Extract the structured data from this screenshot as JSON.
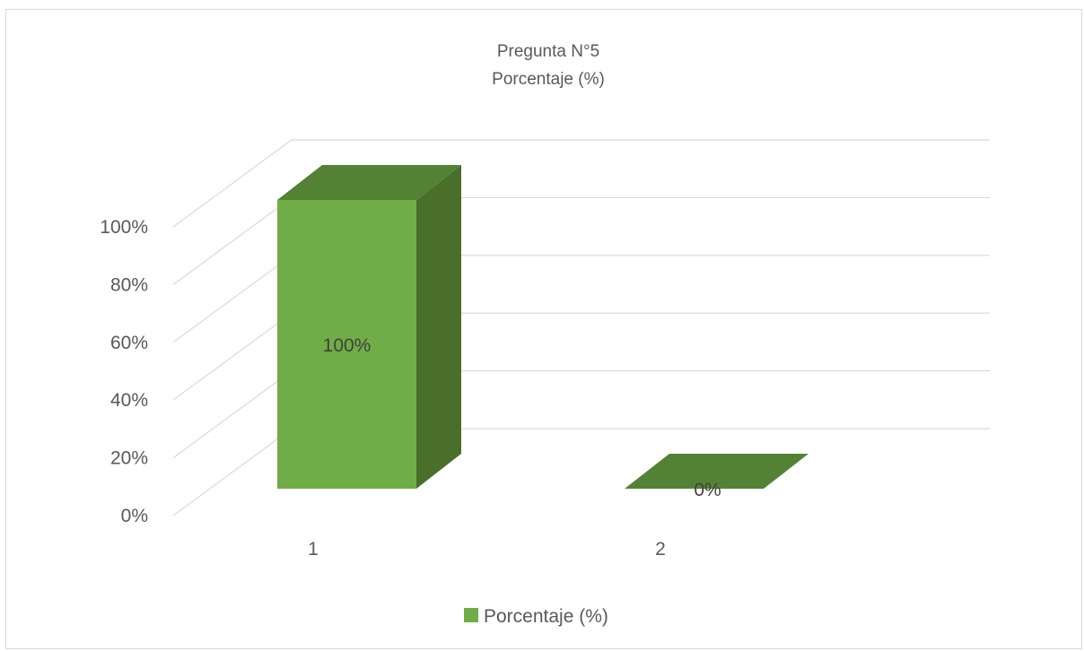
{
  "chart_data": {
    "type": "bar",
    "style": "3d-column",
    "title": "Pregunta N°5",
    "subtitle": "Porcentaje (%)",
    "categories": [
      "1",
      "2"
    ],
    "series": [
      {
        "name": "Porcentaje (%)",
        "values": [
          100,
          0
        ],
        "data_labels": [
          "100%",
          "0%"
        ]
      }
    ],
    "ylim": [
      0,
      100
    ],
    "yticks": [
      0,
      20,
      40,
      60,
      80,
      100
    ],
    "ytick_labels": [
      "0%",
      "20%",
      "40%",
      "60%",
      "80%",
      "100%"
    ],
    "grid": true,
    "legend": "bottom",
    "colors": {
      "front": "#70ad47",
      "side": "#4a6f2a",
      "top": "#548235",
      "grid": "#d9d9d9"
    }
  }
}
